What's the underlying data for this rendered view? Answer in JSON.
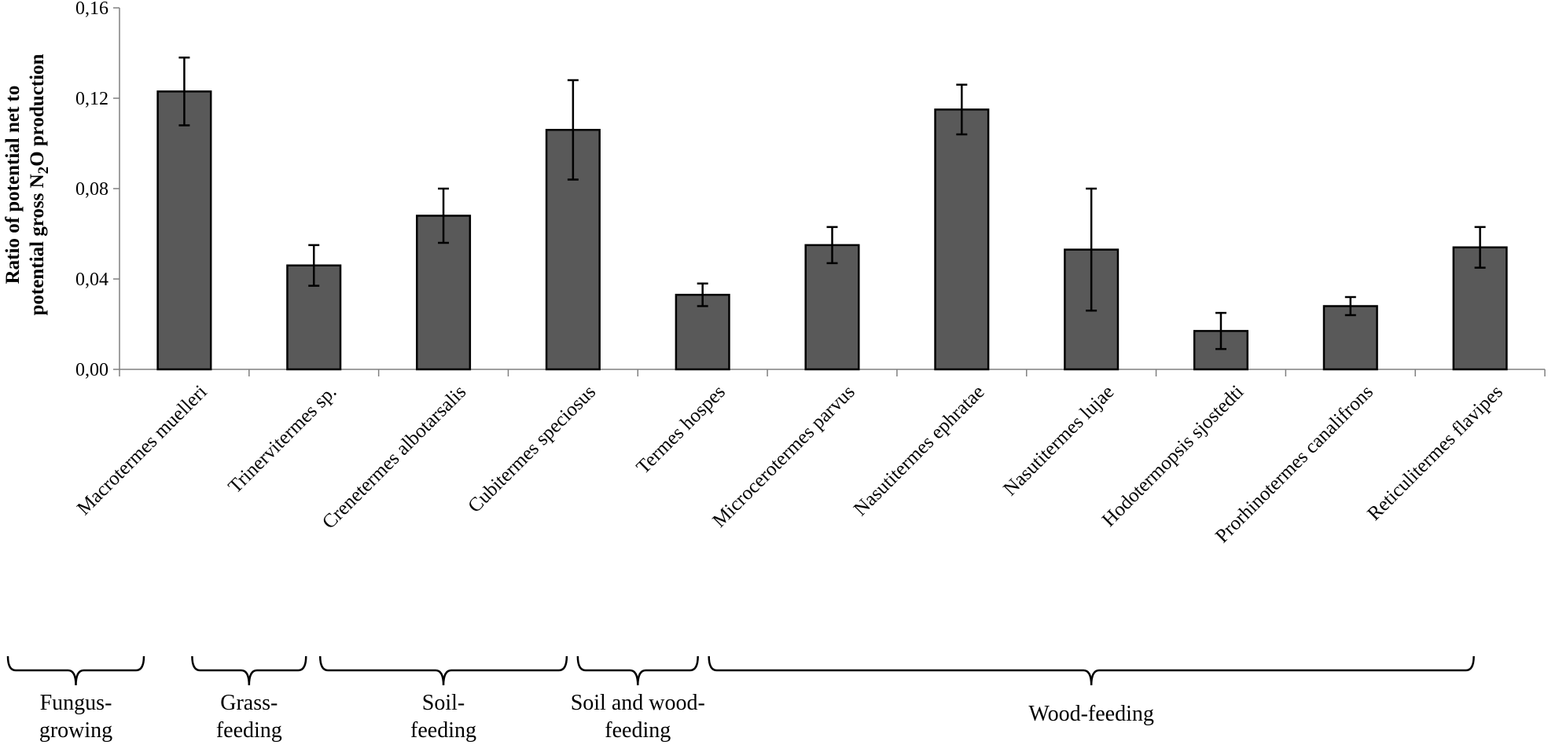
{
  "chart_data": {
    "type": "bar",
    "title": "",
    "ylabel_line1": "Ratio of potential net to",
    "ylabel_line2_prefix": "potential gross N",
    "ylabel_line2_sub": "2",
    "ylabel_line2_suffix": "O production",
    "xlabel": "",
    "ylim": [
      0,
      0.16
    ],
    "yticks": [
      0,
      0.04,
      0.08,
      0.12,
      0.16
    ],
    "ytick_labels": [
      "0,00",
      "0,04",
      "0,08",
      "0,12",
      "0,16"
    ],
    "grid": false,
    "bar_color": "#595959",
    "categories": [
      "Macrotermes muelleri",
      "Trinervitermes sp.",
      "Crenetermes albotarsalis",
      "Cubitermes speciosus",
      "Termes hospes",
      "Microcerotermes parvus",
      "Nasutitermes ephratae",
      "Nasutitermes lujae",
      "Hodotermopsis sjostedti",
      "Prorhinotermes canalifrons",
      "Reticulitermes flavipes"
    ],
    "values": [
      0.123,
      0.046,
      0.068,
      0.106,
      0.033,
      0.055,
      0.115,
      0.053,
      0.017,
      0.028,
      0.054
    ],
    "errors": [
      0.015,
      0.009,
      0.012,
      0.022,
      0.005,
      0.008,
      0.011,
      0.027,
      0.008,
      0.004,
      0.009
    ],
    "groups": [
      {
        "label_lines": [
          "Fungus-",
          "growing"
        ],
        "from": 0,
        "to": 0
      },
      {
        "label_lines": [
          "Grass-",
          "feeding"
        ],
        "from": 1,
        "to": 1
      },
      {
        "label_lines": [
          "Soil-",
          "feeding"
        ],
        "from": 2,
        "to": 3
      },
      {
        "label_lines": [
          "Soil and wood-",
          "feeding"
        ],
        "from": 4,
        "to": 4
      },
      {
        "label_lines": [
          "Wood-feeding"
        ],
        "from": 5,
        "to": 10
      }
    ]
  }
}
